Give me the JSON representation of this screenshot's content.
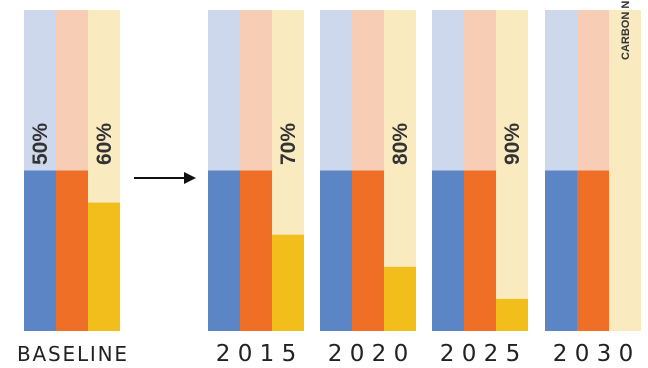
{
  "chart_data": {
    "type": "bar",
    "groups": [
      {
        "label": "BASELINE",
        "bars": [
          {
            "kind": "blue",
            "value": 50,
            "target": 100,
            "label": "50%"
          },
          {
            "kind": "orange",
            "value": 50,
            "target": 100,
            "label": ""
          },
          {
            "kind": "yellow",
            "value": 40,
            "target": 100,
            "label": "60%"
          }
        ]
      },
      {
        "label": "2 0 1 5",
        "bars": [
          {
            "kind": "blue",
            "value": 50,
            "target": 100,
            "label": ""
          },
          {
            "kind": "orange",
            "value": 50,
            "target": 100,
            "label": ""
          },
          {
            "kind": "yellow",
            "value": 30,
            "target": 100,
            "label": "70%"
          }
        ]
      },
      {
        "label": "2 0 2 0",
        "bars": [
          {
            "kind": "blue",
            "value": 50,
            "target": 100,
            "label": ""
          },
          {
            "kind": "orange",
            "value": 50,
            "target": 100,
            "label": ""
          },
          {
            "kind": "yellow",
            "value": 20,
            "target": 100,
            "label": "80%"
          }
        ]
      },
      {
        "label": "2 0 2 5",
        "bars": [
          {
            "kind": "blue",
            "value": 50,
            "target": 100,
            "label": ""
          },
          {
            "kind": "orange",
            "value": 50,
            "target": 100,
            "label": ""
          },
          {
            "kind": "yellow",
            "value": 10,
            "target": 100,
            "label": "90%"
          }
        ]
      },
      {
        "label": "2 0 3 0",
        "bars": [
          {
            "kind": "blue",
            "value": 50,
            "target": 100,
            "label": ""
          },
          {
            "kind": "orange",
            "value": 50,
            "target": 100,
            "label": ""
          },
          {
            "kind": "yellow",
            "value": 0,
            "target": 100,
            "label": "CARBON NEUTRAL*"
          }
        ]
      }
    ],
    "ylim": [
      0,
      100
    ],
    "colors": {
      "blue": {
        "light": "#cdd8ec",
        "dark": "#5b85c5"
      },
      "orange": {
        "light": "#f8cdb6",
        "dark": "#ee6f25"
      },
      "yellow": {
        "light": "#faeabf",
        "dark": "#f1be1c"
      }
    }
  }
}
